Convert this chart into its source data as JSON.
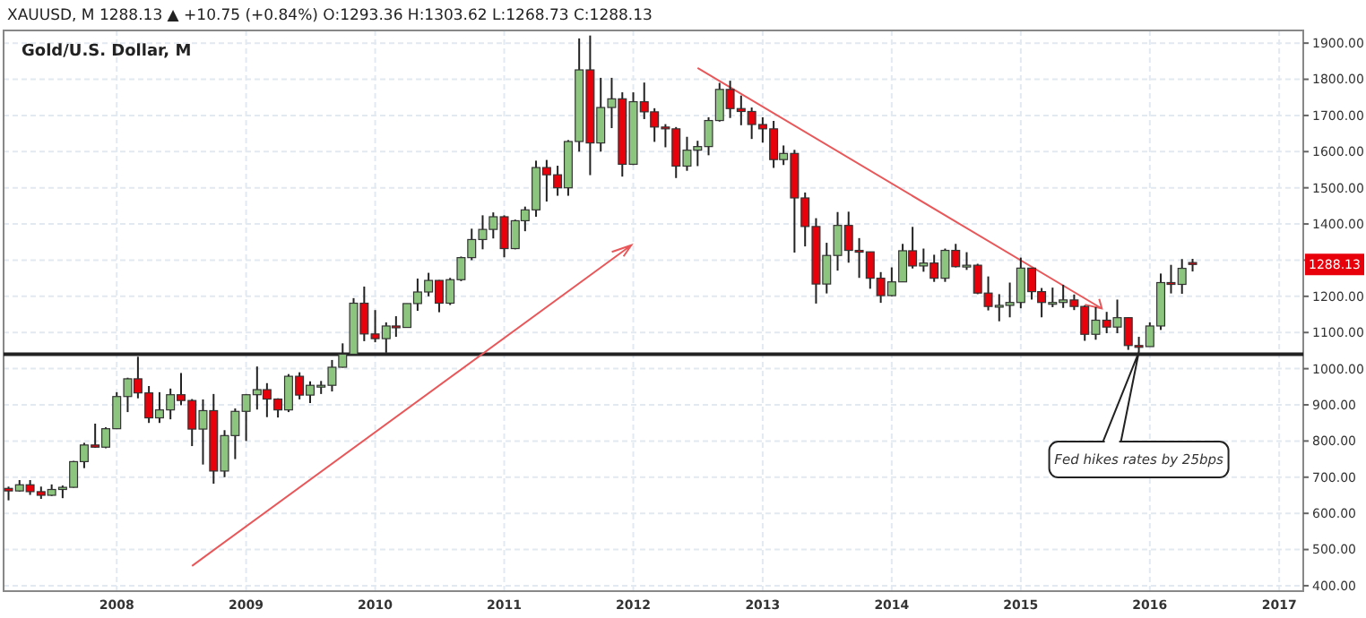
{
  "chart_data": {
    "type": "candlestick",
    "title": "Gold/U.S. Dollar, M",
    "annotations": [
      "XAUUSD, M  1288.13 ▲ +10.75 (+0.84%) O:1293.36 H:1303.62 L:1268.73 C:1288.13",
      {
        "text": "Fed hikes rates by 25bps",
        "x": "2015-12",
        "y": 1046
      },
      {
        "text": "1288.13",
        "y": 1288.13
      }
    ],
    "x": [
      "2007-03",
      "2007-04",
      "2007-05",
      "2007-06",
      "2007-07",
      "2007-08",
      "2007-09",
      "2007-10",
      "2007-11",
      "2007-12",
      "2008-01",
      "2008-02",
      "2008-03",
      "2008-04",
      "2008-05",
      "2008-06",
      "2008-07",
      "2008-08",
      "2008-09",
      "2008-10",
      "2008-11",
      "2008-12",
      "2009-01",
      "2009-02",
      "2009-03",
      "2009-04",
      "2009-05",
      "2009-06",
      "2009-07",
      "2009-08",
      "2009-09",
      "2009-10",
      "2009-11",
      "2009-12",
      "2010-01",
      "2010-02",
      "2010-03",
      "2010-04",
      "2010-05",
      "2010-06",
      "2010-07",
      "2010-08",
      "2010-09",
      "2010-10",
      "2010-11",
      "2010-12",
      "2011-01",
      "2011-02",
      "2011-03",
      "2011-04",
      "2011-05",
      "2011-06",
      "2011-07",
      "2011-08",
      "2011-09",
      "2011-10",
      "2011-11",
      "2011-12",
      "2012-01",
      "2012-02",
      "2012-03",
      "2012-04",
      "2012-05",
      "2012-06",
      "2012-07",
      "2012-08",
      "2012-09",
      "2012-10",
      "2012-11",
      "2012-12",
      "2013-01",
      "2013-02",
      "2013-03",
      "2013-04",
      "2013-05",
      "2013-06",
      "2013-07",
      "2013-08",
      "2013-09",
      "2013-10",
      "2013-11",
      "2013-12",
      "2014-01",
      "2014-02",
      "2014-03",
      "2014-04",
      "2014-05",
      "2014-06",
      "2014-07",
      "2014-08",
      "2014-09",
      "2014-10",
      "2014-11",
      "2014-12",
      "2015-01",
      "2015-02",
      "2015-03",
      "2015-04",
      "2015-05",
      "2015-06",
      "2015-07",
      "2015-08",
      "2015-09",
      "2015-10",
      "2015-11",
      "2015-12",
      "2016-01",
      "2016-02",
      "2016-03",
      "2016-04",
      "2016-05"
    ],
    "ohlc": [
      [
        669,
        674,
        636,
        662
      ],
      [
        662,
        692,
        660,
        679
      ],
      [
        679,
        692,
        651,
        660
      ],
      [
        660,
        674,
        640,
        650
      ],
      [
        650,
        680,
        648,
        666
      ],
      [
        666,
        677,
        642,
        672
      ],
      [
        672,
        745,
        671,
        743
      ],
      [
        743,
        795,
        725,
        789
      ],
      [
        789,
        848,
        781,
        783
      ],
      [
        783,
        838,
        780,
        834
      ],
      [
        834,
        935,
        834,
        923
      ],
      [
        923,
        975,
        880,
        972
      ],
      [
        972,
        1033,
        918,
        933
      ],
      [
        933,
        952,
        850,
        864
      ],
      [
        864,
        935,
        850,
        886
      ],
      [
        886,
        945,
        860,
        928
      ],
      [
        928,
        988,
        899,
        912
      ],
      [
        912,
        916,
        786,
        833
      ],
      [
        833,
        915,
        735,
        884
      ],
      [
        884,
        930,
        682,
        717
      ],
      [
        717,
        830,
        700,
        815
      ],
      [
        815,
        890,
        750,
        882
      ],
      [
        882,
        930,
        800,
        928
      ],
      [
        928,
        1006,
        887,
        942
      ],
      [
        942,
        960,
        866,
        916
      ],
      [
        916,
        918,
        865,
        886
      ],
      [
        886,
        985,
        880,
        979
      ],
      [
        979,
        990,
        915,
        927
      ],
      [
        927,
        965,
        905,
        954
      ],
      [
        954,
        966,
        930,
        954
      ],
      [
        954,
        1024,
        937,
        1004
      ],
      [
        1004,
        1070,
        1003,
        1040
      ],
      [
        1040,
        1195,
        1040,
        1181
      ],
      [
        1181,
        1227,
        1076,
        1096
      ],
      [
        1096,
        1162,
        1073,
        1083
      ],
      [
        1083,
        1128,
        1044,
        1118
      ],
      [
        1118,
        1145,
        1088,
        1114
      ],
      [
        1114,
        1180,
        1113,
        1180
      ],
      [
        1180,
        1249,
        1160,
        1212
      ],
      [
        1212,
        1265,
        1200,
        1244
      ],
      [
        1244,
        1245,
        1156,
        1181
      ],
      [
        1181,
        1251,
        1176,
        1246
      ],
      [
        1246,
        1310,
        1242,
        1307
      ],
      [
        1307,
        1387,
        1300,
        1357
      ],
      [
        1357,
        1424,
        1330,
        1385
      ],
      [
        1385,
        1432,
        1360,
        1420
      ],
      [
        1420,
        1424,
        1308,
        1332
      ],
      [
        1332,
        1412,
        1330,
        1409
      ],
      [
        1409,
        1448,
        1380,
        1439
      ],
      [
        1439,
        1575,
        1420,
        1556
      ],
      [
        1556,
        1577,
        1462,
        1536
      ],
      [
        1536,
        1561,
        1478,
        1500
      ],
      [
        1500,
        1632,
        1478,
        1628
      ],
      [
        1628,
        1913,
        1600,
        1826
      ],
      [
        1826,
        1921,
        1535,
        1624
      ],
      [
        1624,
        1804,
        1600,
        1722
      ],
      [
        1722,
        1804,
        1665,
        1746
      ],
      [
        1746,
        1764,
        1531,
        1565
      ],
      [
        1565,
        1764,
        1563,
        1738
      ],
      [
        1738,
        1791,
        1690,
        1710
      ],
      [
        1710,
        1720,
        1627,
        1668
      ],
      [
        1668,
        1676,
        1612,
        1663
      ],
      [
        1663,
        1668,
        1527,
        1560
      ],
      [
        1560,
        1641,
        1547,
        1604
      ],
      [
        1604,
        1630,
        1560,
        1614
      ],
      [
        1614,
        1695,
        1590,
        1686
      ],
      [
        1686,
        1790,
        1683,
        1772
      ],
      [
        1772,
        1796,
        1693,
        1719
      ],
      [
        1719,
        1755,
        1673,
        1711
      ],
      [
        1711,
        1722,
        1635,
        1675
      ],
      [
        1675,
        1695,
        1625,
        1663
      ],
      [
        1663,
        1685,
        1555,
        1578
      ],
      [
        1578,
        1617,
        1563,
        1595
      ],
      [
        1595,
        1605,
        1321,
        1472
      ],
      [
        1472,
        1487,
        1338,
        1393
      ],
      [
        1393,
        1416,
        1180,
        1234
      ],
      [
        1234,
        1348,
        1208,
        1313
      ],
      [
        1313,
        1433,
        1271,
        1396
      ],
      [
        1396,
        1434,
        1293,
        1327
      ],
      [
        1327,
        1361,
        1251,
        1323
      ],
      [
        1323,
        1323,
        1221,
        1250
      ],
      [
        1250,
        1267,
        1182,
        1202
      ],
      [
        1202,
        1280,
        1200,
        1240
      ],
      [
        1240,
        1345,
        1240,
        1326
      ],
      [
        1326,
        1392,
        1277,
        1284
      ],
      [
        1284,
        1332,
        1268,
        1292
      ],
      [
        1292,
        1315,
        1240,
        1250
      ],
      [
        1250,
        1332,
        1240,
        1327
      ],
      [
        1327,
        1345,
        1280,
        1282
      ],
      [
        1282,
        1322,
        1273,
        1286
      ],
      [
        1286,
        1290,
        1206,
        1209
      ],
      [
        1209,
        1255,
        1161,
        1172
      ],
      [
        1172,
        1206,
        1131,
        1175
      ],
      [
        1175,
        1238,
        1142,
        1183
      ],
      [
        1183,
        1307,
        1167,
        1278
      ],
      [
        1278,
        1278,
        1191,
        1213
      ],
      [
        1213,
        1223,
        1142,
        1183
      ],
      [
        1183,
        1224,
        1170,
        1183
      ],
      [
        1183,
        1232,
        1168,
        1190
      ],
      [
        1190,
        1205,
        1162,
        1172
      ],
      [
        1172,
        1175,
        1077,
        1095
      ],
      [
        1095,
        1170,
        1080,
        1134
      ],
      [
        1134,
        1157,
        1098,
        1115
      ],
      [
        1115,
        1191,
        1098,
        1141
      ],
      [
        1141,
        1142,
        1052,
        1064
      ],
      [
        1064,
        1088,
        1046,
        1061
      ],
      [
        1061,
        1128,
        1061,
        1118
      ],
      [
        1118,
        1263,
        1107,
        1238
      ],
      [
        1238,
        1287,
        1208,
        1233
      ],
      [
        1233,
        1303,
        1207,
        1277.38
      ],
      [
        1293.36,
        1303.62,
        1268.73,
        1288.13
      ]
    ],
    "xlim": [
      "2007-02-15",
      "2017-03-10"
    ],
    "xticks": [
      {
        "value": "2008",
        "label": "2008"
      },
      {
        "value": "2009",
        "label": "2009"
      },
      {
        "value": "2010",
        "label": "2010"
      },
      {
        "value": "2011",
        "label": "2011"
      },
      {
        "value": "2012",
        "label": "2012"
      },
      {
        "value": "2013",
        "label": "2013"
      },
      {
        "value": "2014",
        "label": "2014"
      },
      {
        "value": "2015",
        "label": "2015"
      },
      {
        "value": "2016",
        "label": "2016"
      },
      {
        "value": "2017",
        "label": "2017"
      }
    ],
    "ylim": [
      385,
      1935
    ],
    "yticks": [
      {
        "value": 400,
        "label": "400.00"
      },
      {
        "value": 500,
        "label": "500.00"
      },
      {
        "value": 600,
        "label": "600.00"
      },
      {
        "value": 700,
        "label": "700.00"
      },
      {
        "value": 800,
        "label": "800.00"
      },
      {
        "value": 900,
        "label": "900.00"
      },
      {
        "value": 1000,
        "label": "1000.00"
      },
      {
        "value": 1100,
        "label": "1100.00"
      },
      {
        "value": 1200,
        "label": "1200.00"
      },
      {
        "value": 1300,
        "label": null
      },
      {
        "value": 1400,
        "label": "1400.00"
      },
      {
        "value": 1500,
        "label": "1500.00"
      },
      {
        "value": 1600,
        "label": "1600.00"
      },
      {
        "value": 1700,
        "label": "1700.00"
      },
      {
        "value": 1800,
        "label": "1800.00"
      },
      {
        "value": 1900,
        "label": "1900.00"
      }
    ],
    "grid": true,
    "ref_lines": [
      {
        "axis": "y",
        "value": 1040,
        "color": "#222222"
      }
    ]
  }
}
